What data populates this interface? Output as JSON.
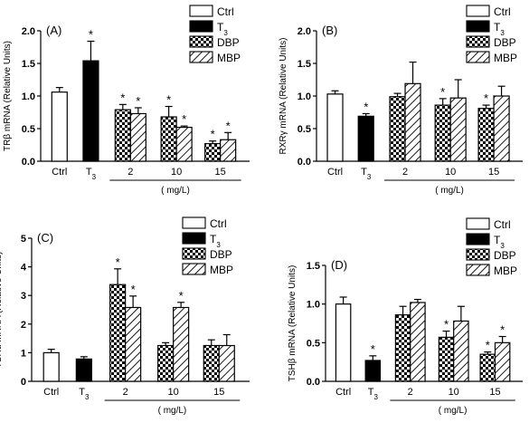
{
  "chart_data": [
    {
      "type": "bar",
      "panel_label": "(A)",
      "ylabel": "TRβ  mRNA (Relative Units)",
      "ylim": [
        0,
        2.0
      ],
      "yticks": [
        "0.0",
        "0.5",
        "1.0",
        "1.5",
        "2.0"
      ],
      "ytick_values": [
        0,
        0.5,
        1.0,
        1.5,
        2.0
      ],
      "xlabel": "( mg/L)",
      "legend_position": "top-right",
      "legend": [
        {
          "label": "Ctrl",
          "pattern": "open"
        },
        {
          "label": "T3",
          "pattern": "solid"
        },
        {
          "label": "DBP",
          "pattern": "checker"
        },
        {
          "label": "MBP",
          "pattern": "hatch"
        }
      ],
      "groups": [
        {
          "label": "Ctrl",
          "bars": [
            {
              "series": "Ctrl",
              "value": 1.06,
              "error": 0.07,
              "sig": false
            }
          ]
        },
        {
          "label": "T3",
          "bars": [
            {
              "series": "T3",
              "value": 1.54,
              "error": 0.3,
              "sig": true
            }
          ]
        },
        {
          "label": "2",
          "bars": [
            {
              "series": "DBP",
              "value": 0.79,
              "error": 0.08,
              "sig": true
            },
            {
              "series": "MBP",
              "value": 0.73,
              "error": 0.09,
              "sig": true
            }
          ]
        },
        {
          "label": "10",
          "bars": [
            {
              "series": "DBP",
              "value": 0.68,
              "error": 0.16,
              "sig": true
            },
            {
              "series": "MBP",
              "value": 0.52,
              "error": 0.02,
              "sig": true
            }
          ]
        },
        {
          "label": "15",
          "bars": [
            {
              "series": "DBP",
              "value": 0.27,
              "error": 0.04,
              "sig": true
            },
            {
              "series": "MBP",
              "value": 0.33,
              "error": 0.11,
              "sig": true
            }
          ]
        }
      ]
    },
    {
      "type": "bar",
      "panel_label": "(B)",
      "ylabel": "RXRγ  mRNA (Relative Units)",
      "ylim": [
        0,
        2.0
      ],
      "yticks": [
        "0.0",
        "0.5",
        "1.0",
        "1.5",
        "2.0"
      ],
      "ytick_values": [
        0,
        0.5,
        1.0,
        1.5,
        2.0
      ],
      "xlabel": "( mg/L)",
      "legend_position": "top-right",
      "legend": [
        {
          "label": "Ctrl",
          "pattern": "open"
        },
        {
          "label": "T3",
          "pattern": "solid"
        },
        {
          "label": "DBP",
          "pattern": "checker"
        },
        {
          "label": "MBP",
          "pattern": "hatch"
        }
      ],
      "groups": [
        {
          "label": "Ctrl",
          "bars": [
            {
              "series": "Ctrl",
              "value": 1.03,
              "error": 0.05,
              "sig": false
            }
          ]
        },
        {
          "label": "T3",
          "bars": [
            {
              "series": "T3",
              "value": 0.69,
              "error": 0.04,
              "sig": true
            }
          ]
        },
        {
          "label": "2",
          "bars": [
            {
              "series": "DBP",
              "value": 0.99,
              "error": 0.05,
              "sig": false
            },
            {
              "series": "MBP",
              "value": 1.19,
              "error": 0.33,
              "sig": false
            }
          ]
        },
        {
          "label": "10",
          "bars": [
            {
              "series": "DBP",
              "value": 0.86,
              "error": 0.1,
              "sig": true
            },
            {
              "series": "MBP",
              "value": 0.97,
              "error": 0.28,
              "sig": false
            }
          ]
        },
        {
          "label": "15",
          "bars": [
            {
              "series": "DBP",
              "value": 0.81,
              "error": 0.05,
              "sig": true
            },
            {
              "series": "MBP",
              "value": 1.0,
              "error": 0.15,
              "sig": false
            }
          ]
        }
      ]
    },
    {
      "type": "bar",
      "panel_label": "(C)",
      "ylabel": "TSHα  mRNA (Relative Units)",
      "ylim": [
        0,
        5
      ],
      "yticks": [
        "0",
        "1",
        "2",
        "3",
        "4",
        "5"
      ],
      "ytick_values": [
        0,
        1,
        2,
        3,
        4,
        5
      ],
      "xlabel": "( mg/L)",
      "legend_position": "top-right",
      "legend": [
        {
          "label": "Ctrl",
          "pattern": "open"
        },
        {
          "label": "T3",
          "pattern": "solid"
        },
        {
          "label": "DBP",
          "pattern": "checker"
        },
        {
          "label": "MBP",
          "pattern": "hatch"
        }
      ],
      "groups": [
        {
          "label": "Ctrl",
          "bars": [
            {
              "series": "Ctrl",
              "value": 1.0,
              "error": 0.12,
              "sig": false
            }
          ]
        },
        {
          "label": "T3",
          "bars": [
            {
              "series": "T3",
              "value": 0.78,
              "error": 0.08,
              "sig": false
            }
          ]
        },
        {
          "label": "2",
          "bars": [
            {
              "series": "DBP",
              "value": 3.38,
              "error": 0.55,
              "sig": true
            },
            {
              "series": "MBP",
              "value": 2.58,
              "error": 0.4,
              "sig": true
            }
          ]
        },
        {
          "label": "10",
          "bars": [
            {
              "series": "DBP",
              "value": 1.25,
              "error": 0.1,
              "sig": false
            },
            {
              "series": "MBP",
              "value": 2.58,
              "error": 0.18,
              "sig": true
            }
          ]
        },
        {
          "label": "15",
          "bars": [
            {
              "series": "DBP",
              "value": 1.25,
              "error": 0.2,
              "sig": false
            },
            {
              "series": "MBP",
              "value": 1.25,
              "error": 0.38,
              "sig": false
            }
          ]
        }
      ]
    },
    {
      "type": "bar",
      "panel_label": "(D)",
      "ylabel": "TSHβ  mRNA (Relative Units)",
      "ylim": [
        0,
        1.5
      ],
      "yticks": [
        "0.0",
        "0.5",
        "1.0",
        "1.5"
      ],
      "ytick_values": [
        0,
        0.5,
        1.0,
        1.5
      ],
      "xlabel": "( mg/L)",
      "legend_position": "top-right",
      "legend": [
        {
          "label": "Ctrl",
          "pattern": "open"
        },
        {
          "label": "T3",
          "pattern": "solid"
        },
        {
          "label": "DBP",
          "pattern": "checker"
        },
        {
          "label": "MBP",
          "pattern": "hatch"
        }
      ],
      "groups": [
        {
          "label": "Ctrl",
          "bars": [
            {
              "series": "Ctrl",
              "value": 1.0,
              "error": 0.09,
              "sig": false
            }
          ]
        },
        {
          "label": "T3",
          "bars": [
            {
              "series": "T3",
              "value": 0.27,
              "error": 0.06,
              "sig": true
            }
          ]
        },
        {
          "label": "2",
          "bars": [
            {
              "series": "DBP",
              "value": 0.86,
              "error": 0.11,
              "sig": false
            },
            {
              "series": "MBP",
              "value": 1.02,
              "error": 0.04,
              "sig": false
            }
          ]
        },
        {
          "label": "10",
          "bars": [
            {
              "series": "DBP",
              "value": 0.57,
              "error": 0.08,
              "sig": true
            },
            {
              "series": "MBP",
              "value": 0.78,
              "error": 0.19,
              "sig": false
            }
          ]
        },
        {
          "label": "15",
          "bars": [
            {
              "series": "DBP",
              "value": 0.35,
              "error": 0.03,
              "sig": true
            },
            {
              "series": "MBP",
              "value": 0.5,
              "error": 0.08,
              "sig": true
            }
          ]
        }
      ]
    }
  ]
}
